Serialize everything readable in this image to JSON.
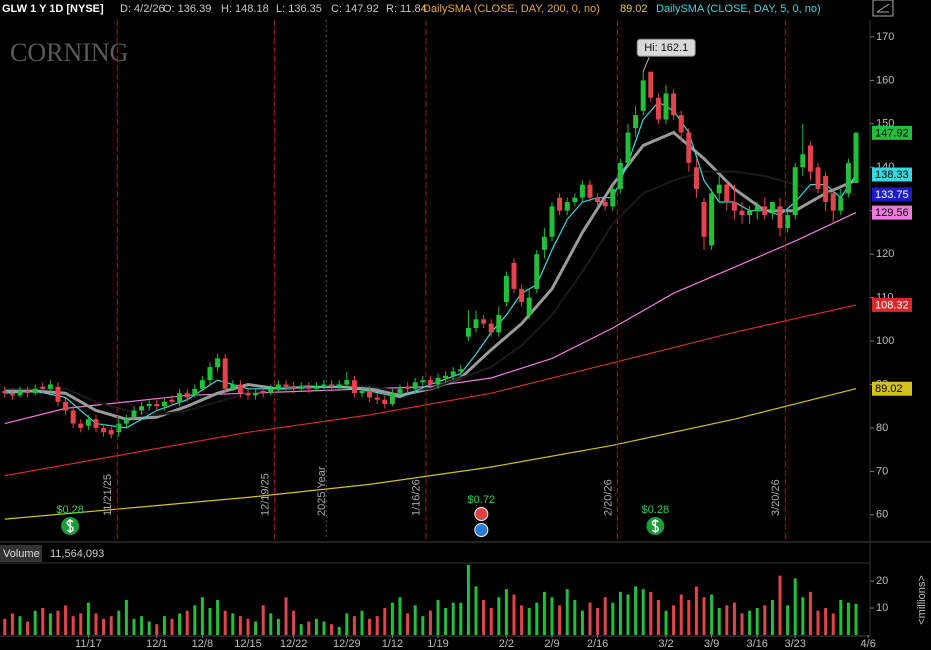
{
  "header": {
    "symbol": "GLW 1 Y 1D [NYSE]",
    "date": "D: 4/2/26",
    "open": "O: 136.39",
    "high": "H: 148.18",
    "low": "L: 136.35",
    "close": "C: 147.92",
    "range": "R: 11.84",
    "study1": "DailySMA (CLOSE, DAY, 200, 0, no)",
    "study1_value": "89.02",
    "study2": "DailySMA (CLOSE, DAY, 5, 0, no)"
  },
  "chart_data": {
    "type": "candlestick",
    "watermark": "CORNING",
    "xlim": [
      -0.63,
      113.84
    ],
    "ylim": [
      54.2,
      173.9
    ],
    "yticks": [
      60,
      70,
      80,
      90,
      100,
      110,
      120,
      130,
      140,
      150,
      160,
      170
    ],
    "xticks": [
      {
        "value": 11,
        "label": "11/17"
      },
      {
        "value": 20,
        "label": "12/1"
      },
      {
        "value": 26,
        "label": "12/8"
      },
      {
        "value": 32,
        "label": "12/15"
      },
      {
        "value": 38,
        "label": "12/22"
      },
      {
        "value": 45,
        "label": "12/29"
      },
      {
        "value": 51,
        "label": "1/12"
      },
      {
        "value": 57,
        "label": "1/19"
      },
      {
        "value": 66,
        "label": "2/2"
      },
      {
        "value": 72,
        "label": "2/9"
      },
      {
        "value": 78,
        "label": "2/16"
      },
      {
        "value": 87,
        "label": "3/2"
      },
      {
        "value": 93,
        "label": "3/9"
      },
      {
        "value": 99,
        "label": "3/16"
      },
      {
        "value": 104,
        "label": "3/23"
      },
      {
        "value": 113.6,
        "label": "4/6"
      }
    ],
    "up_color": "#22c03a",
    "down_color": "#e0454f",
    "open": [
      88.5,
      88,
      87.5,
      88.5,
      88,
      89.5,
      89,
      89.5,
      86,
      84,
      81,
      80.5,
      82,
      80,
      79.5,
      79,
      81,
      82.5,
      84,
      85,
      85.5,
      85,
      86.5,
      86,
      88,
      87.5,
      89,
      91,
      94,
      96,
      89,
      90,
      88,
      87.5,
      88.5,
      88,
      89,
      90,
      89.5,
      89,
      89.5,
      89,
      89.5,
      90,
      89.5,
      90,
      91,
      88,
      88.5,
      87,
      86.5,
      85.5,
      88,
      89.5,
      89,
      90.5,
      91,
      90,
      91.5,
      92,
      93,
      101,
      103,
      105,
      104,
      102,
      109,
      118,
      112,
      106,
      112,
      121,
      124,
      133,
      130,
      132,
      133,
      136,
      133,
      132,
      131,
      135,
      141,
      149,
      153,
      162,
      156,
      151,
      157,
      152,
      148,
      140,
      132,
      122,
      134,
      136,
      132,
      130,
      129,
      130,
      131,
      130,
      131,
      126,
      129,
      140,
      145,
      140,
      138,
      134,
      130,
      134,
      136.39
    ],
    "high": [
      89.5,
      89,
      89.5,
      89.5,
      90,
      90.5,
      91,
      90.5,
      87,
      85,
      82,
      83,
      83,
      81,
      80.5,
      82,
      83,
      85,
      86,
      86.5,
      86.5,
      87,
      87.5,
      89,
      89,
      90,
      92,
      95,
      97,
      97,
      91,
      91,
      89,
      89,
      89.5,
      90,
      91,
      91,
      90.5,
      90.5,
      90.5,
      90.5,
      91,
      91,
      91,
      93,
      92,
      89.5,
      89.5,
      88,
      87.5,
      89,
      90,
      90.5,
      91.5,
      92,
      92,
      92.5,
      93,
      94,
      94.5,
      107,
      107,
      106,
      105,
      108,
      116,
      119,
      113,
      112,
      121,
      126,
      132,
      134,
      133,
      134,
      137,
      137,
      134,
      133,
      136,
      142,
      150,
      154,
      162.1,
      161,
      157,
      159,
      158,
      153,
      149,
      142,
      133,
      135,
      138,
      137,
      136,
      132,
      131,
      132,
      133,
      132,
      133,
      130,
      141,
      150,
      146,
      141,
      139,
      135,
      135,
      142,
      148.18
    ],
    "low": [
      87,
      86.5,
      87,
      87,
      87.5,
      88,
      88,
      85,
      83,
      80,
      79,
      79.5,
      79,
      78,
      77.5,
      78,
      80,
      82,
      83,
      84,
      84,
      84,
      85,
      85,
      86,
      87,
      88.5,
      90,
      93,
      88,
      88.5,
      87,
      86.5,
      86.5,
      87,
      87.5,
      88,
      88.5,
      88,
      88.5,
      88,
      88.5,
      88.5,
      88.5,
      88.5,
      89,
      87,
      87,
      86,
      85.5,
      84.5,
      85,
      87.5,
      88,
      88,
      89.5,
      89.5,
      89,
      90.5,
      91,
      92,
      100,
      102,
      103,
      101,
      101,
      108,
      111,
      108,
      105,
      111,
      119,
      123,
      129,
      129,
      131,
      132,
      132,
      131,
      130,
      130,
      134,
      140,
      147,
      152,
      155,
      150,
      150,
      151,
      146,
      139,
      133,
      121,
      121,
      132,
      130,
      128,
      127,
      127,
      128,
      128,
      128,
      124,
      125,
      128,
      138,
      137,
      134,
      130,
      127,
      129,
      133,
      136.35
    ],
    "close": [
      88,
      87.5,
      88.5,
      88,
      89,
      89,
      90,
      86,
      84,
      81,
      80,
      82,
      80,
      79,
      78.5,
      81,
      82,
      84,
      85,
      85.5,
      85,
      86,
      86,
      88,
      87,
      89,
      91,
      94,
      96,
      89,
      90,
      88,
      87.5,
      88,
      88,
      89,
      90,
      89.5,
      89,
      89.5,
      89,
      89.5,
      90,
      89.5,
      90,
      91,
      88,
      88.5,
      87,
      86.5,
      85.5,
      88,
      89,
      89,
      90.5,
      91,
      90,
      91.5,
      92,
      93,
      93.5,
      103,
      105,
      104,
      102,
      106,
      115,
      112,
      109,
      110,
      120,
      124,
      131,
      130,
      132,
      133,
      136,
      133,
      132,
      131,
      135,
      141,
      148,
      152,
      160,
      156,
      151,
      157,
      152,
      148,
      141,
      135,
      124,
      134,
      136,
      132,
      130,
      129,
      130,
      131,
      129,
      132,
      126,
      129,
      140,
      143,
      139,
      135,
      132,
      130,
      133,
      141,
      147.92
    ],
    "lines": [
      {
        "color": "#d4c21c",
        "width": 1.2,
        "label_bg": "#d4c21c",
        "label_text": "#000",
        "x": [
          0,
          16,
          32,
          48,
          64,
          80,
          96,
          112
        ],
        "values": [
          59,
          61.5,
          64,
          67,
          71,
          76,
          82,
          89.02
        ]
      },
      {
        "color": "#d62a2a",
        "width": 1.2,
        "label_bg": "#d62a2a",
        "label_text": "#fff",
        "x": [
          0,
          16,
          32,
          48,
          64,
          80,
          96,
          112
        ],
        "values": [
          69,
          74,
          79,
          83,
          88,
          95,
          102,
          108.32
        ]
      },
      {
        "color": "#f07ae0",
        "width": 1.2,
        "label_bg": "#f07ae0",
        "label_text": "#000",
        "x": [
          0,
          8,
          16,
          24,
          32,
          40,
          48,
          56,
          64,
          72,
          80,
          88,
          96,
          104,
          112
        ],
        "values": [
          81,
          84.5,
          86,
          87.5,
          88,
          88.5,
          89,
          89.5,
          91.5,
          96,
          103,
          111,
          117,
          123,
          129.56
        ]
      },
      {
        "color": "#9a9a9a",
        "width": 3,
        "x": [
          0,
          4,
          8,
          12,
          16,
          20,
          24,
          28,
          32,
          36,
          40,
          44,
          48,
          52,
          56,
          60,
          64,
          68,
          72,
          76,
          80,
          84,
          88,
          92,
          96,
          100,
          104,
          108,
          112
        ],
        "values": [
          88.5,
          88.5,
          88,
          84,
          82,
          82.5,
          85,
          88,
          90,
          89,
          89.5,
          89.5,
          89,
          87.5,
          89,
          91.5,
          98,
          104,
          112,
          125,
          136,
          145,
          148,
          142,
          135,
          130,
          130,
          134,
          137
        ]
      },
      {
        "color": "#1a1a1a",
        "width": 2,
        "label_bg": "#1c1cc8",
        "label_text": "#fff",
        "x": [
          0,
          4,
          8,
          12,
          16,
          20,
          24,
          28,
          32,
          36,
          40,
          44,
          48,
          52,
          56,
          60,
          64,
          68,
          72,
          76,
          80,
          84,
          88,
          92,
          96,
          100,
          104,
          108,
          112
        ],
        "values": [
          89,
          89,
          89,
          86,
          84,
          83,
          84,
          86,
          88,
          89,
          89.5,
          90,
          89.5,
          88.5,
          89,
          91.5,
          94,
          99,
          106,
          116,
          127,
          134,
          137,
          139,
          139,
          138,
          136,
          134,
          133.75
        ]
      },
      {
        "color": "#38d8e0",
        "width": 1.2,
        "label_bg": "#38d8e0",
        "label_text": "#000",
        "x": [
          0,
          4,
          8,
          12,
          16,
          20,
          24,
          28,
          32,
          36,
          40,
          44,
          48,
          52,
          56,
          60,
          62,
          64,
          66,
          68,
          70,
          72,
          74,
          76,
          78,
          80,
          82,
          84,
          86,
          88,
          90,
          92,
          94,
          96,
          98,
          100,
          102,
          104,
          106,
          108,
          110,
          112
        ],
        "values": [
          88,
          88.5,
          87,
          81,
          80,
          84,
          86.5,
          91,
          89,
          89,
          89.5,
          89.5,
          88.5,
          87,
          90,
          92.5,
          97,
          102,
          106,
          111,
          113,
          121,
          128,
          132,
          133,
          133,
          141,
          151,
          155,
          153,
          148,
          137,
          132,
          132,
          130,
          130,
          129,
          132,
          136,
          136,
          133,
          138.33
        ]
      }
    ],
    "events": [
      {
        "x": 14.8,
        "label": "11/21/25"
      },
      {
        "x": 35.5,
        "label": "12/19/25"
      },
      {
        "x": 55.4,
        "label": "1/16/26"
      },
      {
        "x": 80.6,
        "label": "2/20/26"
      },
      {
        "x": 102.7,
        "label": "3/20/26"
      }
    ],
    "year_marker": {
      "x": 42.3,
      "label": "2025 Year"
    },
    "dividends": [
      {
        "x": 8.6,
        "label": "$0.28"
      },
      {
        "x": 85.6,
        "label": "$0.28"
      }
    ],
    "earnings": {
      "x": 62.7,
      "label": "$0.72"
    },
    "hi": {
      "x": 84,
      "value": 162.1,
      "label": "Hi: 162.1"
    },
    "volume": {
      "label": "Volume",
      "readout": "11,564,093",
      "unit": "<millions>",
      "ylim": [
        0,
        26.7
      ],
      "yticks": [
        10,
        20
      ],
      "values": [
        6,
        8,
        7,
        5,
        9,
        10,
        8,
        9,
        11,
        7,
        8,
        12,
        8,
        6,
        7,
        9,
        13,
        6,
        7,
        5,
        4,
        7,
        6,
        8,
        9,
        11,
        14,
        10,
        13,
        9,
        8,
        7,
        6,
        5,
        11,
        8,
        6,
        14,
        9,
        4,
        5,
        6,
        5,
        4,
        3,
        8,
        7,
        9,
        6,
        7,
        10,
        12,
        14,
        8,
        11,
        7,
        9,
        13,
        10,
        12,
        12,
        26,
        18,
        13,
        10,
        14,
        17,
        15,
        11,
        10,
        12,
        16,
        14,
        11,
        17,
        13,
        9,
        12,
        10,
        14,
        12,
        16,
        15,
        18,
        17,
        16,
        13,
        9,
        11,
        15,
        13,
        18,
        14,
        15,
        10,
        11,
        12,
        8,
        9,
        10,
        11,
        13,
        22,
        11,
        21,
        14,
        16,
        9,
        10,
        8,
        13,
        12,
        11.564093
      ]
    }
  }
}
